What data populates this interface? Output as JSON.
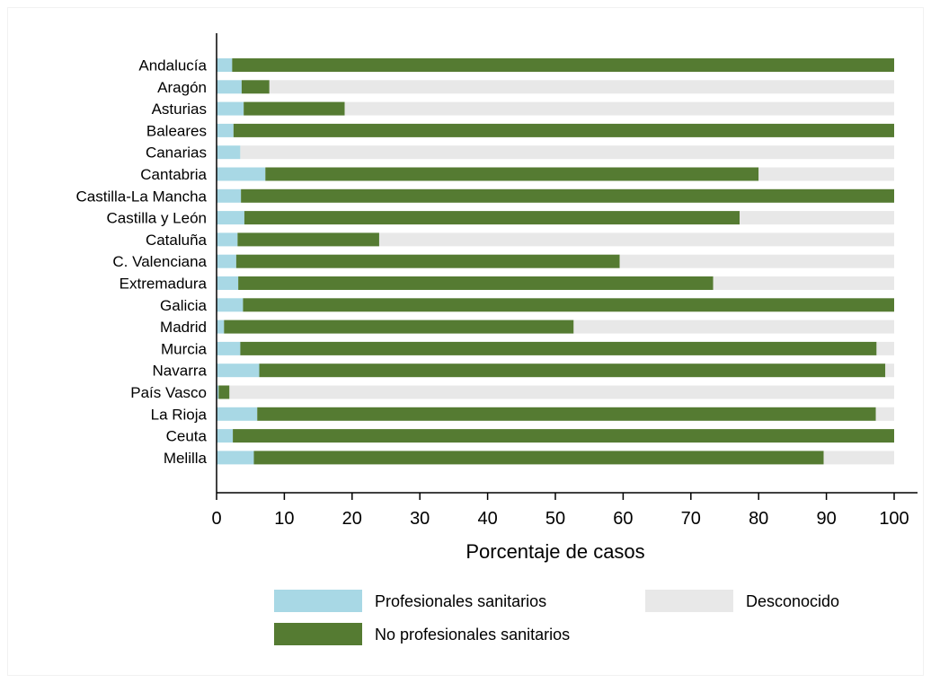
{
  "chart_data": {
    "type": "bar",
    "orientation": "horizontal",
    "stacked": true,
    "categories": [
      "Andalucía",
      "Aragón",
      "Asturias",
      "Baleares",
      "Canarias",
      "Cantabria",
      "Castilla-La Mancha",
      "Castilla y León",
      "Cataluña",
      "C. Valenciana",
      "Extremadura",
      "Galicia",
      "Madrid",
      "Murcia",
      "Navarra",
      "País Vasco",
      "La Rioja",
      "Ceuta",
      "Melilla"
    ],
    "series": [
      {
        "name": "Profesionales sanitarios",
        "color": "#a8d8e5",
        "values": [
          2.3,
          3.7,
          4.0,
          2.5,
          3.5,
          7.2,
          3.6,
          4.1,
          3.1,
          2.9,
          3.2,
          3.9,
          1.1,
          3.5,
          6.3,
          0.3,
          6.0,
          2.4,
          5.5
        ]
      },
      {
        "name": "No profesionales sanitarios",
        "color": "#557b32",
        "values": [
          97.7,
          4.1,
          14.9,
          97.5,
          0.0,
          72.8,
          96.4,
          73.1,
          20.9,
          56.6,
          70.1,
          96.1,
          51.6,
          93.9,
          92.4,
          1.6,
          91.3,
          97.6,
          84.1
        ]
      },
      {
        "name": "Desconocido",
        "color": "#e8e8e8",
        "values": [
          0.0,
          92.2,
          81.1,
          0.0,
          96.5,
          20.0,
          0.0,
          22.8,
          76.0,
          40.5,
          26.7,
          0.0,
          47.3,
          2.6,
          1.3,
          98.1,
          2.7,
          0.0,
          10.4
        ]
      }
    ],
    "xlabel": "Porcentaje de casos",
    "ylabel": "",
    "xlim": [
      0,
      100
    ],
    "xticks": [
      "0",
      "10",
      "20",
      "30",
      "40",
      "50",
      "60",
      "70",
      "80",
      "90",
      "100"
    ],
    "grid": false,
    "legend_position": "bottom"
  }
}
